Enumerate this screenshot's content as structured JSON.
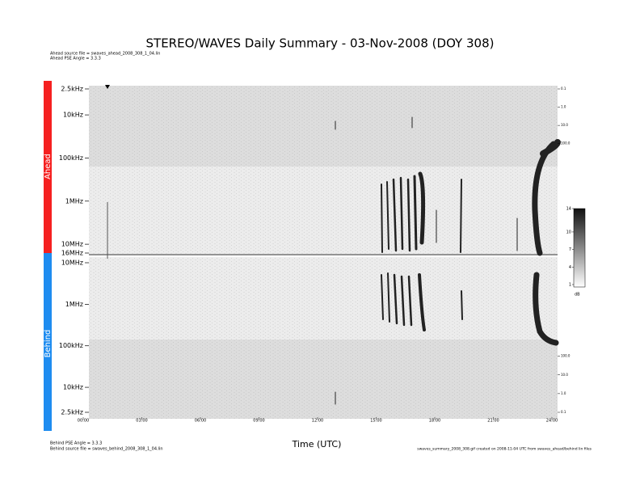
{
  "title": "STEREO/WAVES Daily Summary - 03-Nov-2008 (DOY 308)",
  "notes": {
    "ahead_file": "Ahead source file = swaves_ahead_2008_308_1_04.lin",
    "ahead_angle": "Ahead PSE Angle = 3.3.3",
    "behind_angle": "Behind PSE Angle = 3.3.3",
    "behind_file": "Behind source file = swaves_behind_2008_308_1_04.lin",
    "footer": "swaves_summary_2008_308.gif created on 2008-11-04 UTC from swaves_ahead/behind lin files"
  },
  "chart_data": [
    {
      "type": "spectrogram",
      "panel_label": "Ahead",
      "color": "#f52020",
      "log": true,
      "ylim": [
        16000,
        2.5
      ],
      "yticks": [
        {
          "value": 2.5,
          "label": "2.5kHz"
        },
        {
          "value": 10,
          "label": "10kHz"
        },
        {
          "value": 100,
          "label": "100kHz"
        },
        {
          "value": 1000,
          "label": "1MHz"
        },
        {
          "value": 10000,
          "label": "10MHz"
        },
        {
          "value": 16000,
          "label": "16MHz"
        }
      ],
      "y2lim": [
        100000000,
        0.1
      ],
      "y2ticks": [
        0.1,
        {
          "value": 1,
          "label": "1.0"
        },
        {
          "value": 10,
          "label": "10.0"
        },
        {
          "value": 100,
          "label": "100.0"
        }
      ]
    },
    {
      "type": "spectrogram",
      "panel_label": "Behind",
      "color": "#1e8cf0",
      "log": true,
      "ylim": [
        2.5,
        10000
      ],
      "yticks": [
        {
          "value": 2.5,
          "label": "2.5kHz"
        },
        {
          "value": 10,
          "label": "10kHz"
        },
        {
          "value": 100,
          "label": "100kHz"
        },
        {
          "value": 1000,
          "label": "1MHz"
        },
        {
          "value": 10000,
          "label": "10MHz"
        }
      ],
      "y2lim": [
        0.1,
        10000000
      ],
      "y2ticks": [
        0.1,
        {
          "value": 1,
          "label": "1.0"
        },
        {
          "value": 10,
          "label": "10.0"
        },
        {
          "value": 100,
          "label": "100.0"
        }
      ],
      "xlabel": "Time (UTC)",
      "xlim": [
        0,
        24
      ],
      "xticks": [
        {
          "value": 0,
          "label": "00:00"
        },
        {
          "value": 3,
          "label": "03:00"
        },
        {
          "value": 6,
          "label": "06:00"
        },
        {
          "value": 9,
          "label": "09:00"
        },
        {
          "value": 12,
          "label": "12:00"
        },
        {
          "value": 15,
          "label": "15:00"
        },
        {
          "value": 18,
          "label": "18:00"
        },
        {
          "value": 21,
          "label": "21:00"
        },
        {
          "value": 24,
          "label": "24:00"
        }
      ]
    },
    {
      "type": "colorbar",
      "label": "dB",
      "ylim": [
        1,
        14
      ],
      "yticks": [
        1,
        4,
        7,
        10,
        14
      ]
    }
  ]
}
